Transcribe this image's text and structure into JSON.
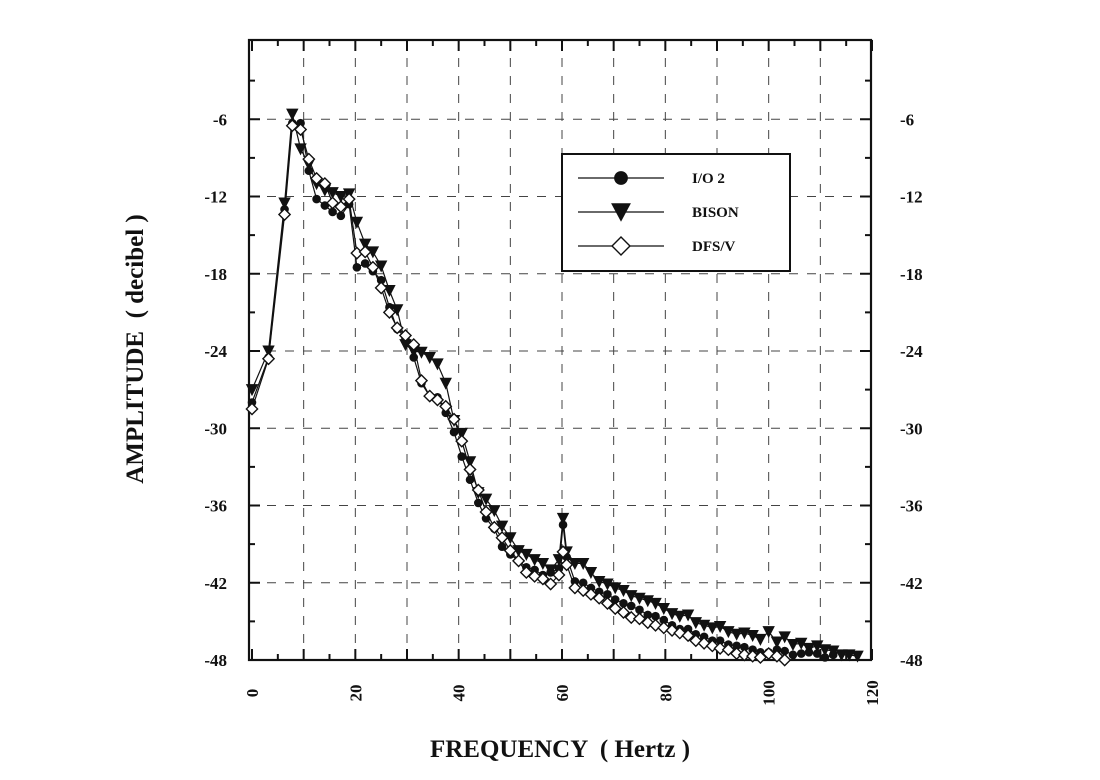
{
  "chart_data": {
    "type": "line",
    "title": "",
    "xlabel": "FREQUENCY  ( Hertz )",
    "ylabel": "AMPLITUDE  ( decibel )",
    "xlim": [
      0,
      120
    ],
    "ylim": [
      -48,
      0
    ],
    "xticks": [
      0,
      20,
      40,
      60,
      80,
      100,
      120
    ],
    "yticks": [
      -6,
      -12,
      -18,
      -24,
      -30,
      -36,
      -42,
      -48
    ],
    "grid": true,
    "legend_position": "top-right",
    "series": [
      {
        "name": "I/O  2",
        "marker": "filled-circle",
        "x": [
          0,
          3.2,
          6.3,
          7.8,
          9.4,
          11,
          12.5,
          14.1,
          15.6,
          17.2,
          18.8,
          20.3,
          21.9,
          23.4,
          25,
          26.6,
          28.1,
          29.7,
          31.3,
          32.8,
          34.4,
          35.9,
          37.5,
          39.1,
          40.6,
          42.2,
          43.8,
          45.3,
          46.9,
          48.4,
          50,
          51.6,
          53.1,
          54.7,
          56.3,
          57.8,
          59.4,
          60.2,
          60.9,
          62.5,
          64.1,
          65.6,
          67.2,
          68.8,
          70.3,
          71.9,
          73.4,
          75,
          76.6,
          78.1,
          79.7,
          81.3,
          82.8,
          84.4,
          85.9,
          87.5,
          89.1,
          90.6,
          92.2,
          93.8,
          95.3,
          96.9,
          98.4,
          100,
          101.6,
          103.1,
          104.7,
          106.3,
          107.8,
          109.4,
          110.9,
          112.5
        ],
        "y": [
          -28,
          -24.5,
          -13,
          -6.3,
          -6.3,
          -10,
          -12.2,
          -12.7,
          -13.2,
          -13.5,
          -12.6,
          -17.5,
          -17.2,
          -17.8,
          -18.5,
          -20.6,
          -22.3,
          -23,
          -24.5,
          -26.5,
          -27.5,
          -27.6,
          -28.8,
          -30.3,
          -32.2,
          -34,
          -35.8,
          -37,
          -37.8,
          -39.2,
          -39.8,
          -40.3,
          -40.8,
          -41,
          -41.4,
          -41.2,
          -40.9,
          -37.5,
          -40,
          -41.9,
          -42,
          -42.4,
          -42.7,
          -42.9,
          -43.3,
          -43.6,
          -43.8,
          -44.1,
          -44.5,
          -44.6,
          -44.9,
          -45.3,
          -45.6,
          -45.6,
          -46,
          -46.2,
          -46.5,
          -46.5,
          -46.8,
          -46.9,
          -47,
          -47.2,
          -47.4,
          -47.4,
          -47.2,
          -47.3,
          -47.6,
          -47.5,
          -47.4,
          -47.5,
          -47.8,
          -47.6
        ]
      },
      {
        "name": "BISON",
        "marker": "filled-triangle-down",
        "x": [
          0,
          3.2,
          6.3,
          7.8,
          9.4,
          11,
          12.5,
          14.1,
          15.6,
          17.2,
          18.8,
          20.3,
          21.9,
          23.4,
          25,
          26.6,
          28.1,
          29.7,
          31.3,
          32.8,
          34.4,
          35.9,
          37.5,
          39.1,
          40.6,
          42.2,
          43.8,
          45.3,
          46.9,
          48.4,
          50,
          51.6,
          53.1,
          54.7,
          56.3,
          57.8,
          59.4,
          60.2,
          60.9,
          62.5,
          64.1,
          65.6,
          67.2,
          68.8,
          70.3,
          71.9,
          73.4,
          75,
          76.6,
          78.1,
          79.7,
          81.3,
          82.8,
          84.4,
          85.9,
          87.5,
          89.1,
          90.6,
          92.2,
          93.8,
          95.3,
          96.9,
          98.4,
          100,
          101.6,
          103.1,
          104.7,
          106.3,
          107.8,
          109.4,
          110.9,
          112.5,
          114.1,
          115.6,
          117.2
        ],
        "y": [
          -27,
          -24,
          -12.5,
          -5.6,
          -8.3,
          -9.5,
          -11,
          -11.5,
          -11.7,
          -12,
          -11.8,
          -14,
          -15.7,
          -16.3,
          -17.4,
          -19.3,
          -20.8,
          -23.5,
          -24,
          -24.1,
          -24.5,
          -25,
          -26.5,
          -29.4,
          -30.4,
          -32.6,
          -35,
          -35.5,
          -36.4,
          -37.6,
          -38.5,
          -39.5,
          -39.8,
          -40.2,
          -40.5,
          -41,
          -40.2,
          -37,
          -39.6,
          -40.5,
          -40.5,
          -41.2,
          -41.9,
          -42.1,
          -42.4,
          -42.6,
          -43,
          -43.2,
          -43.4,
          -43.6,
          -44,
          -44.4,
          -44.6,
          -44.5,
          -45.1,
          -45.3,
          -45.5,
          -45.4,
          -45.8,
          -46,
          -45.9,
          -46.1,
          -46.4,
          -45.8,
          -46.6,
          -46.2,
          -46.8,
          -46.7,
          -47.1,
          -46.9,
          -47.2,
          -47.3,
          -47.6,
          -47.6,
          -47.7
        ]
      },
      {
        "name": "DFS/V",
        "marker": "open-diamond",
        "x": [
          0,
          3.2,
          6.3,
          7.8,
          9.4,
          11,
          12.5,
          14.1,
          15.6,
          17.2,
          18.8,
          20.3,
          21.9,
          23.4,
          25,
          26.6,
          28.1,
          29.7,
          31.3,
          32.8,
          34.4,
          35.9,
          37.5,
          39.1,
          40.6,
          42.2,
          43.8,
          45.3,
          46.9,
          48.4,
          50,
          51.6,
          53.1,
          54.7,
          56.3,
          57.8,
          59.4,
          60.2,
          60.9,
          62.5,
          64.1,
          65.6,
          67.2,
          68.8,
          70.3,
          71.9,
          73.4,
          75,
          76.6,
          78.1,
          79.7,
          81.3,
          82.8,
          84.4,
          85.9,
          87.5,
          89.1,
          90.6,
          92.2,
          93.8,
          95.3,
          96.9,
          98.4,
          100,
          101.6,
          103.1
        ],
        "y": [
          -28.5,
          -24.6,
          -13.4,
          -6.5,
          -6.8,
          -9.1,
          -10.6,
          -11,
          -12.5,
          -12.8,
          -12.2,
          -16.4,
          -16.3,
          -17.5,
          -19.1,
          -21,
          -22.2,
          -22.8,
          -23.5,
          -26.3,
          -27.5,
          -27.8,
          -28.3,
          -29.3,
          -31,
          -33.2,
          -34.8,
          -36.5,
          -37.7,
          -38.5,
          -39.5,
          -40.3,
          -41.2,
          -41.5,
          -41.7,
          -42.1,
          -41.4,
          -39.6,
          -40.6,
          -42.4,
          -42.6,
          -42.9,
          -43.2,
          -43.6,
          -44,
          -44.3,
          -44.7,
          -44.8,
          -45.1,
          -45.3,
          -45.5,
          -45.7,
          -45.9,
          -46.1,
          -46.5,
          -46.7,
          -46.9,
          -47.1,
          -47.2,
          -47.5,
          -47.6,
          -47.7,
          -47.8,
          -47.5,
          -47.7,
          -48
        ]
      }
    ]
  }
}
